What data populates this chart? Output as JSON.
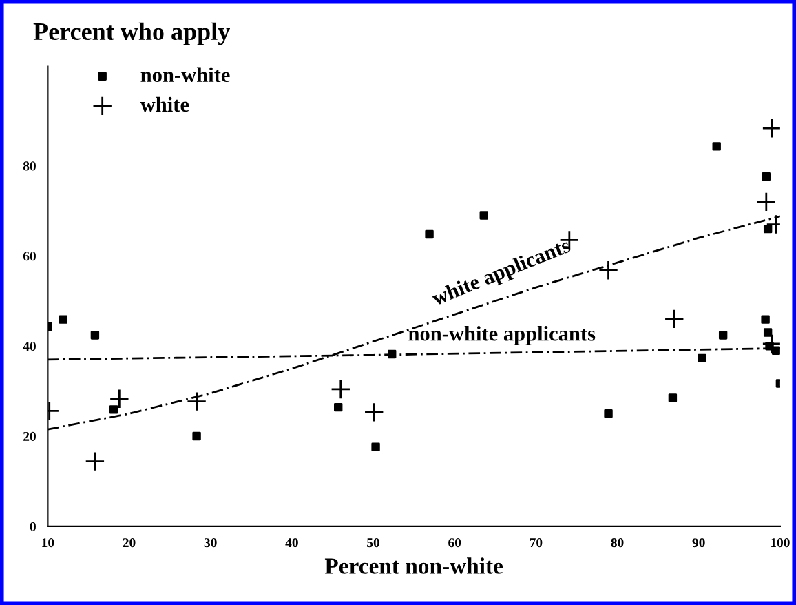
{
  "chart_data": {
    "type": "scatter",
    "title": "Percent who apply",
    "xlabel": "Percent non-white",
    "xlim": [
      10,
      100
    ],
    "ylim": [
      0,
      102
    ],
    "xticks": [
      10,
      20,
      30,
      40,
      50,
      60,
      70,
      80,
      90,
      100
    ],
    "yticks": [
      0,
      20,
      40,
      60,
      80
    ],
    "grid": false,
    "legend": "top left",
    "series": [
      {
        "name": "non-white",
        "color": "#000000",
        "marker": "square",
        "x": [
          10,
          11.9,
          15.8,
          18.1,
          28.3,
          45.7,
          50.3,
          52.3,
          56.9,
          63.6,
          78.9,
          86.8,
          90.4,
          92.2,
          93,
          98.2,
          98.3,
          98.5,
          98.5,
          98.7,
          99.5,
          100
        ],
        "values": [
          44.3,
          45.9,
          42.4,
          25.9,
          20,
          26.4,
          17.6,
          38.2,
          64.8,
          69,
          25,
          28.5,
          37.3,
          84.3,
          42.4,
          45.9,
          77.6,
          66,
          43,
          40,
          39,
          31.7
        ]
      },
      {
        "name": "white",
        "color": "#000000",
        "marker": "cross",
        "x": [
          10.2,
          15.8,
          18.8,
          28.3,
          46,
          50.1,
          74.1,
          78.9,
          87,
          98.3,
          99,
          99,
          99.5
        ],
        "values": [
          25.6,
          14.4,
          28.3,
          27.7,
          30.4,
          25.3,
          63.5,
          56.8,
          46,
          72,
          88.3,
          40.5,
          67
        ]
      },
      {
        "type": "line",
        "color": "#000000",
        "line_style": "dashed",
        "x": [
          10,
          20,
          30,
          40,
          50,
          60,
          70,
          80,
          90,
          100
        ],
        "values": [
          21.5,
          25,
          29.5,
          35,
          41,
          47,
          53,
          58.5,
          64,
          68.8
        ]
      },
      {
        "type": "line",
        "color": "#000000",
        "line_style": "dashed",
        "x": [
          10,
          50,
          100
        ],
        "values": [
          37,
          38,
          39.5
        ]
      }
    ],
    "annotations": [
      "white applicants",
      "non-white applicants"
    ]
  }
}
